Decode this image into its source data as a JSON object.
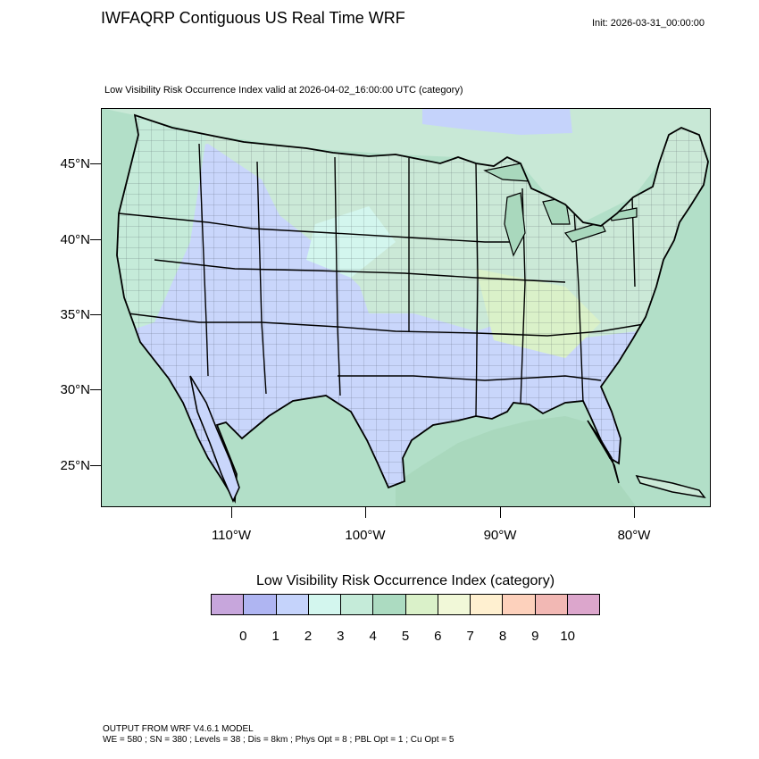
{
  "header": {
    "title": "IWFAQRP Contiguous US Real Time WRF",
    "init": "Init: 2026-03-31_00:00:00"
  },
  "map": {
    "subtitle": "Low Visibility Risk Occurrence Index valid at 2026-04-02_16:00:00 UTC   (category)",
    "lat_labels": [
      "45°N",
      "40°N",
      "35°N",
      "30°N",
      "25°N"
    ],
    "lon_labels": [
      "110°W",
      "100°W",
      "90°W",
      "80°W"
    ],
    "colors": {
      "ocean": "#b2dfc8",
      "canada": "#c8e8d6",
      "conus_east": "#cbe9d7",
      "conus_west": "#c9d6fb",
      "outline": "#000000"
    }
  },
  "legend": {
    "title": "Low Visibility Risk Occurrence Index  (category)",
    "labels": [
      "0",
      "1",
      "2",
      "3",
      "4",
      "5",
      "6",
      "7",
      "8",
      "9",
      "10"
    ],
    "colors": [
      "#c7a6dc",
      "#afb5f2",
      "#c5d3fb",
      "#d3f6ee",
      "#c5ebd9",
      "#acdbc1",
      "#daf1c9",
      "#f1f8d8",
      "#fff0d0",
      "#fdd1bc",
      "#f2b8b4",
      "#dca6cc"
    ]
  },
  "footer": {
    "line1": "OUTPUT FROM WRF V4.6.1 MODEL",
    "line2": "WE = 580 ; SN = 380 ; Levels = 38 ; Dis = 8km ; Phys Opt = 8 ; PBL Opt = 1 ; Cu Opt = 5"
  }
}
